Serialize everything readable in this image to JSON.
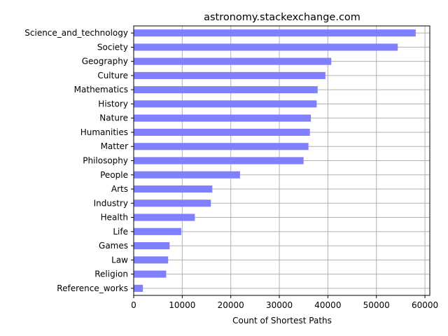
{
  "chart_data": {
    "type": "bar",
    "orientation": "horizontal",
    "title": "astronomy.stackexchange.com",
    "xlabel": "Count of Shortest Paths",
    "ylabel": "",
    "xlim": [
      0,
      61000
    ],
    "xticks": [
      0,
      10000,
      20000,
      30000,
      40000,
      50000,
      60000
    ],
    "grid": true,
    "bar_color": "#8080ff",
    "categories": [
      "Science_and_technology",
      "Society",
      "Geography",
      "Culture",
      "Mathematics",
      "History",
      "Nature",
      "Humanities",
      "Matter",
      "Philosophy",
      "People",
      "Arts",
      "Industry",
      "Health",
      "Life",
      "Games",
      "Law",
      "Religion",
      "Reference_works"
    ],
    "values": [
      58100,
      54400,
      40700,
      39500,
      37900,
      37700,
      36500,
      36300,
      36000,
      35000,
      21900,
      16200,
      15900,
      12600,
      9800,
      7400,
      7100,
      6700,
      1900
    ]
  }
}
